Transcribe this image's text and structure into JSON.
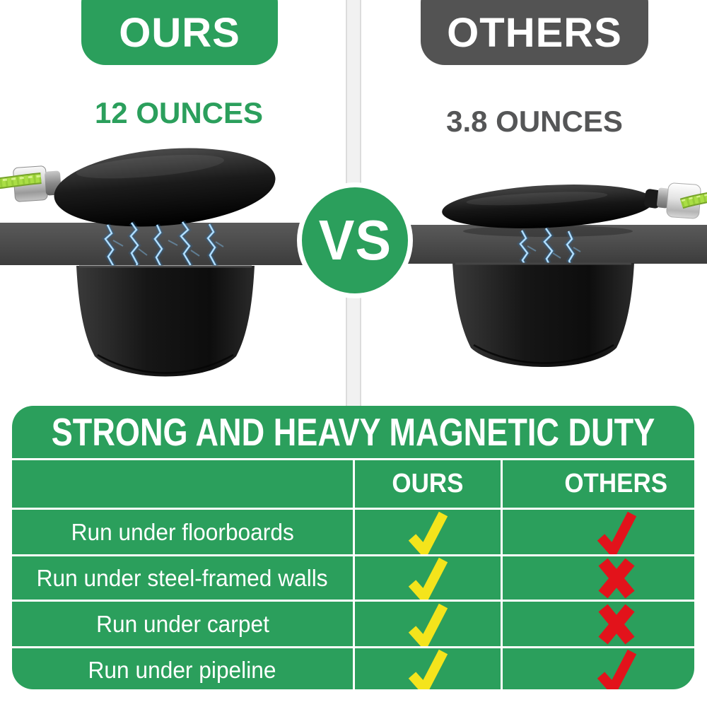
{
  "colors": {
    "green": "#2b9f5c",
    "banner_gray": "#535353",
    "bar_gray": "#4a4a4a",
    "yellow": "#f4e41c",
    "red": "#e2131b",
    "rope_green": "#aade45",
    "white": "#ffffff"
  },
  "left_product": {
    "banner_label": "OURS",
    "weight_label": "12 OUNCES"
  },
  "right_product": {
    "banner_label": "OTHERS",
    "weight_label": "3.8 OUNCES"
  },
  "versus_label": "VS",
  "comparison_table": {
    "title": "STRONG AND HEAVY MAGNETIC DUTY",
    "column_headers": [
      "OURS",
      "OTHERS"
    ],
    "rows": [
      {
        "feature": "Run under floorboards",
        "ours": "check",
        "others": "check"
      },
      {
        "feature": "Run under steel-framed walls",
        "ours": "check",
        "others": "x"
      },
      {
        "feature": "Run under carpet",
        "ours": "check",
        "others": "x"
      },
      {
        "feature": "Run under pipeline",
        "ours": "check",
        "others": "check"
      }
    ]
  }
}
